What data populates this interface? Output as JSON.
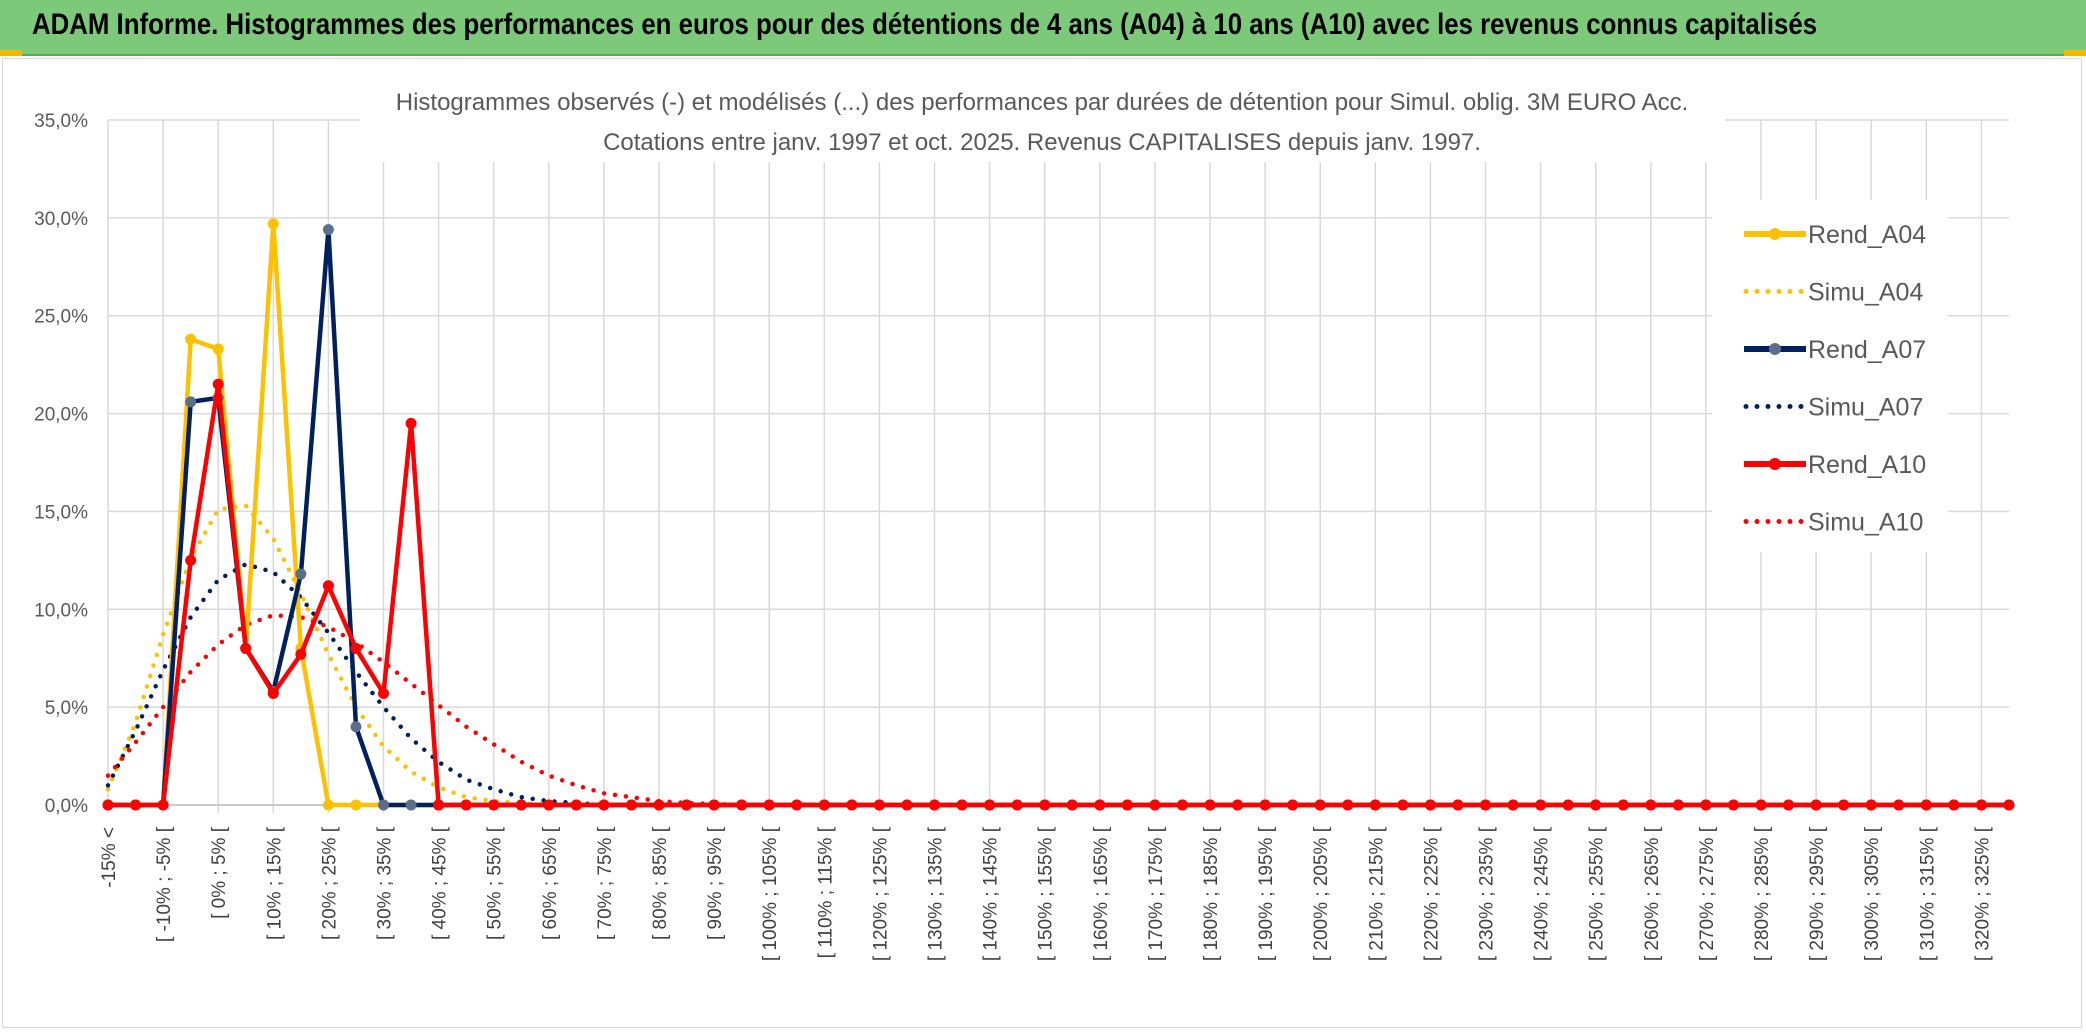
{
  "header": {
    "title": "ADAM Informe. Histogrammes des performances en euros pour des détentions de 4 ans (A04) à 10 ans (A10) avec les revenus connus capitalisés"
  },
  "colors": {
    "banner_bg": "#7cc97a",
    "A04": "#ffc000",
    "A07": "#002060",
    "A10": "#ff0000",
    "A07_marker": "#5a6f8a",
    "grid": "#d9d9d9",
    "text": "#595959"
  },
  "chart_data": {
    "type": "line",
    "title": "Histogrammes observés (-) et modélisés (...) des performances par durées de détention pour Simul. oblig. 3M EURO Acc.",
    "subtitle": "Cotations entre janv. 1997 et oct. 2025. Revenus CAPITALISES depuis janv. 1997.",
    "ylim": [
      0,
      35
    ],
    "yticks": [
      "0,0%",
      "5,0%",
      "10,0%",
      "15,0%",
      "20,0%",
      "25,0%",
      "30,0%",
      "35,0%"
    ],
    "grid": true,
    "legend_position": "right",
    "xlabels_shown": [
      "-15% <",
      "[ -10% ; -5% [",
      "[ 0% ; 5% [",
      "[ 10% ; 15% [",
      "[ 20% ; 25% [",
      "[ 30% ; 35% [",
      "[ 40% ; 45% [",
      "[ 50% ; 55% [",
      "[ 60% ; 65% [",
      "[ 70% ; 75% [",
      "[ 80% ; 85% [",
      "[ 90% ; 95% [",
      "[ 100% ; 105% [",
      "[ 110% ; 115% [",
      "[ 120% ; 125% [",
      "[ 130% ; 135% [",
      "[ 140% ; 145% [",
      "[ 150% ; 155% [",
      "[ 160% ; 165% [",
      "[ 170% ; 175% [",
      "[ 180% ; 185% [",
      "[ 190% ; 195% [",
      "[ 200% ; 205% [",
      "[ 210% ; 215% [",
      "[ 220% ; 225% [",
      "[ 230% ; 235% [",
      "[ 240% ; 245% [",
      "[ 250% ; 255% [",
      "[ 260% ; 265% [",
      "[ 270% ; 275% [",
      "[ 280% ; 285% [",
      "[ 290% ; 295% [",
      "[ 300% ; 305% [",
      "[ 310% ; 315% [",
      "[ 320% ; 325% ["
    ],
    "series": [
      {
        "name": "Rend_A04",
        "style": "solid",
        "color": "#ffc000",
        "values": [
          0,
          0,
          0,
          23.8,
          23.3,
          8.0,
          29.7,
          8.0,
          0,
          0,
          0,
          0,
          0,
          0,
          0,
          0,
          0,
          0,
          0,
          0,
          0,
          0,
          0,
          0,
          0,
          0,
          0,
          0,
          0,
          0,
          0,
          0,
          0,
          0,
          0,
          0,
          0,
          0,
          0,
          0,
          0,
          0,
          0,
          0,
          0,
          0,
          0,
          0,
          0,
          0,
          0,
          0,
          0,
          0,
          0,
          0,
          0,
          0,
          0,
          0,
          0,
          0,
          0,
          0,
          0,
          0,
          0,
          0,
          0,
          0
        ]
      },
      {
        "name": "Simu_A04",
        "style": "dotted",
        "color": "#ffc000",
        "values": [
          0.8,
          4.2,
          8.7,
          12.6,
          15.1,
          15.3,
          13.6,
          10.8,
          7.7,
          5.0,
          3.0,
          1.7,
          0.9,
          0.4,
          0.2,
          0.1,
          0,
          0,
          0,
          0,
          0,
          0,
          0,
          0,
          0,
          0,
          0,
          0,
          0,
          0,
          0,
          0,
          0,
          0,
          0,
          0,
          0,
          0,
          0,
          0,
          0,
          0,
          0,
          0,
          0,
          0,
          0,
          0,
          0,
          0,
          0,
          0,
          0,
          0,
          0,
          0,
          0,
          0,
          0,
          0,
          0,
          0,
          0,
          0,
          0,
          0,
          0,
          0,
          0,
          0
        ]
      },
      {
        "name": "Rend_A07",
        "style": "solid",
        "color": "#002060",
        "values": [
          0,
          0,
          0,
          20.6,
          20.8,
          8.0,
          5.8,
          11.8,
          29.4,
          4.0,
          0,
          0,
          0,
          0,
          0,
          0,
          0,
          0,
          0,
          0,
          0,
          0,
          0,
          0,
          0,
          0,
          0,
          0,
          0,
          0,
          0,
          0,
          0,
          0,
          0,
          0,
          0,
          0,
          0,
          0,
          0,
          0,
          0,
          0,
          0,
          0,
          0,
          0,
          0,
          0,
          0,
          0,
          0,
          0,
          0,
          0,
          0,
          0,
          0,
          0,
          0,
          0,
          0,
          0,
          0,
          0,
          0,
          0,
          0,
          0
        ]
      },
      {
        "name": "Simu_A07",
        "style": "dotted",
        "color": "#002060",
        "values": [
          1.0,
          3.8,
          6.9,
          9.6,
          11.5,
          12.3,
          11.9,
          10.6,
          8.8,
          6.8,
          5.0,
          3.4,
          2.2,
          1.3,
          0.8,
          0.4,
          0.2,
          0.1,
          0,
          0,
          0,
          0,
          0,
          0,
          0,
          0,
          0,
          0,
          0,
          0,
          0,
          0,
          0,
          0,
          0,
          0,
          0,
          0,
          0,
          0,
          0,
          0,
          0,
          0,
          0,
          0,
          0,
          0,
          0,
          0,
          0,
          0,
          0,
          0,
          0,
          0,
          0,
          0,
          0,
          0,
          0,
          0,
          0,
          0,
          0,
          0,
          0,
          0,
          0,
          0
        ]
      },
      {
        "name": "Rend_A10",
        "style": "solid",
        "color": "#ff0000",
        "values": [
          0,
          0,
          0,
          12.5,
          21.5,
          8.0,
          5.7,
          7.7,
          11.2,
          8.0,
          5.7,
          19.5,
          0,
          0,
          0,
          0,
          0,
          0,
          0,
          0,
          0,
          0,
          0,
          0,
          0,
          0,
          0,
          0,
          0,
          0,
          0,
          0,
          0,
          0,
          0,
          0,
          0,
          0,
          0,
          0,
          0,
          0,
          0,
          0,
          0,
          0,
          0,
          0,
          0,
          0,
          0,
          0,
          0,
          0,
          0,
          0,
          0,
          0,
          0,
          0,
          0,
          0,
          0,
          0,
          0,
          0,
          0,
          0,
          0,
          0
        ]
      },
      {
        "name": "Simu_A10",
        "style": "dotted",
        "color": "#ff0000",
        "values": [
          1.5,
          3.2,
          5.0,
          6.8,
          8.2,
          9.2,
          9.7,
          9.6,
          9.1,
          8.3,
          7.3,
          6.2,
          5.1,
          4.0,
          3.1,
          2.2,
          1.5,
          1.0,
          0.6,
          0.4,
          0.2,
          0.1,
          0.05,
          0,
          0,
          0,
          0,
          0,
          0,
          0,
          0,
          0,
          0,
          0,
          0,
          0,
          0,
          0,
          0,
          0,
          0,
          0,
          0,
          0,
          0,
          0,
          0,
          0,
          0,
          0,
          0,
          0,
          0,
          0,
          0,
          0,
          0,
          0,
          0,
          0,
          0,
          0,
          0,
          0,
          0,
          0,
          0,
          0,
          0,
          0
        ]
      }
    ]
  }
}
